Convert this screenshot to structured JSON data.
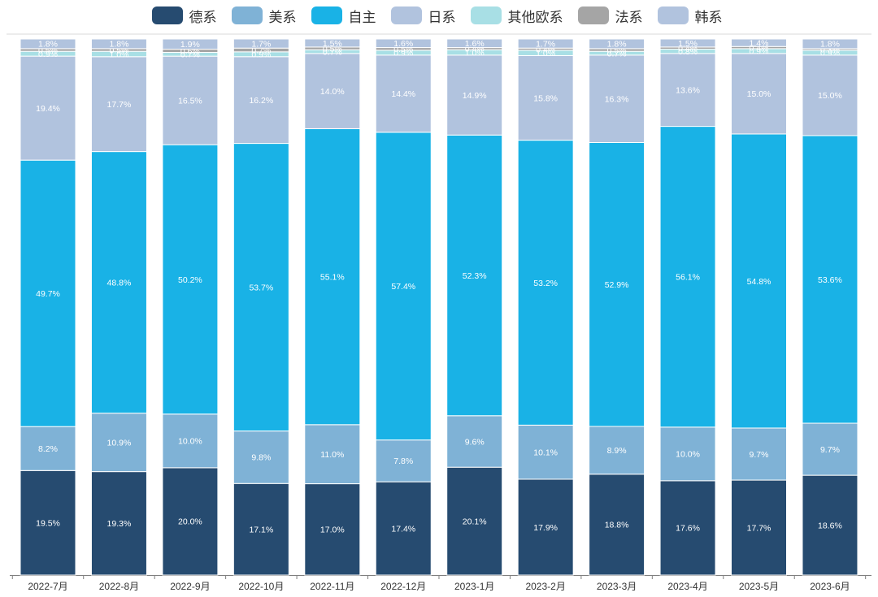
{
  "chart_data": {
    "type": "bar",
    "stacked": true,
    "percent_stacked": true,
    "title": "",
    "xlabel": "",
    "ylabel": "",
    "ylim": [
      0,
      100
    ],
    "legend_position": "top",
    "categories": [
      "2022-7月",
      "2022-8月",
      "2022-9月",
      "2022-10月",
      "2022-11月",
      "2022-12月",
      "2023-1月",
      "2023-2月",
      "2023-3月",
      "2023-4月",
      "2023-5月",
      "2023-6月"
    ],
    "series": [
      {
        "name": "德系",
        "color": "#264b70",
        "values": [
          19.5,
          19.3,
          20.0,
          17.1,
          17.0,
          17.4,
          20.1,
          17.9,
          18.8,
          17.6,
          17.7,
          18.6
        ]
      },
      {
        "name": "美系",
        "color": "#7fb2d6",
        "values": [
          8.2,
          10.9,
          10.0,
          9.8,
          11.0,
          7.8,
          9.6,
          10.1,
          8.9,
          10.0,
          9.7,
          9.7
        ]
      },
      {
        "name": "自主",
        "color": "#19b2e6",
        "values": [
          49.7,
          48.8,
          50.2,
          53.7,
          55.1,
          57.4,
          52.3,
          53.2,
          52.9,
          56.1,
          54.8,
          53.6
        ]
      },
      {
        "name": "日系",
        "color": "#b1c3de",
        "values": [
          19.4,
          17.7,
          16.5,
          16.2,
          14.0,
          14.4,
          14.9,
          15.8,
          16.3,
          13.6,
          15.0,
          15.0
        ]
      },
      {
        "name": "其他欧系",
        "color": "#a8dfe5",
        "values": [
          0.9,
          1.0,
          0.7,
          0.9,
          0.7,
          0.9,
          1.0,
          1.0,
          0.7,
          0.8,
          0.9,
          0.9
        ]
      },
      {
        "name": "法系",
        "color": "#a5a5a5",
        "values": [
          0.5,
          0.5,
          0.6,
          0.7,
          0.5,
          0.5,
          0.4,
          0.4,
          0.5,
          0.4,
          0.4,
          0.3
        ]
      },
      {
        "name": "韩系",
        "color": "#b1c3de",
        "values": [
          1.8,
          1.8,
          1.9,
          1.7,
          1.5,
          1.6,
          1.6,
          1.7,
          1.8,
          1.5,
          1.4,
          1.8
        ]
      }
    ]
  }
}
